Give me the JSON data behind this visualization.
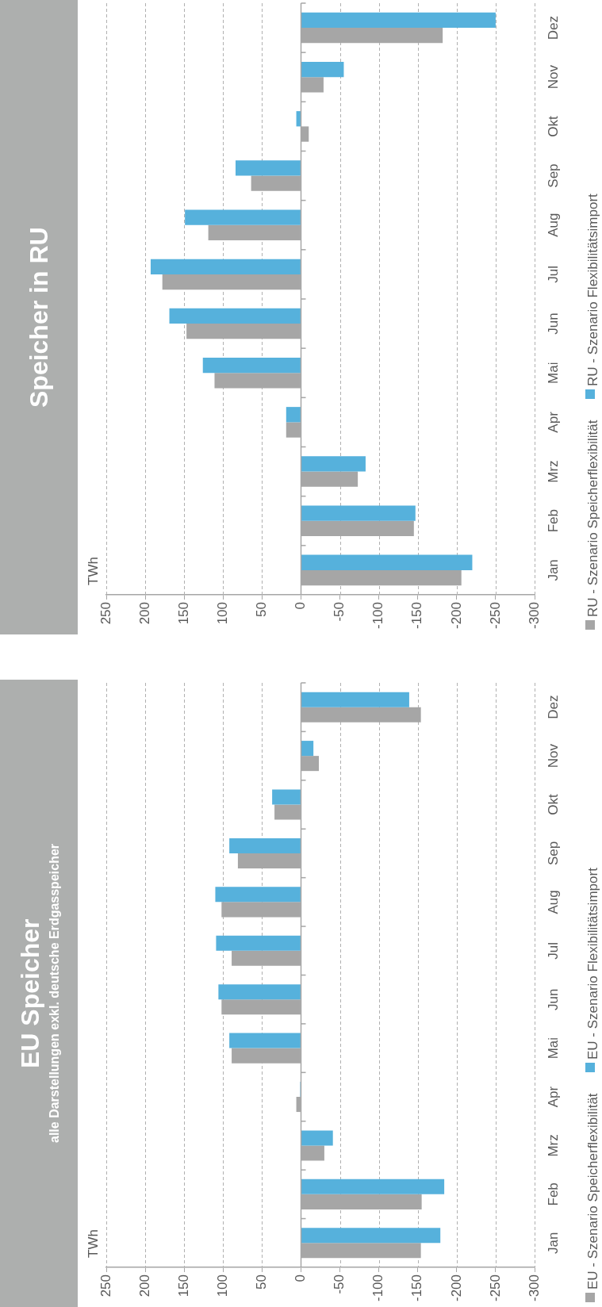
{
  "chart_data": [
    {
      "type": "bar",
      "orientation": "horizontal",
      "title": "EU Speicher",
      "subtitle": "alle Darstellungen exkl. deutsche Erdgasspeicher",
      "annotations": [
        "TWh"
      ],
      "categories": [
        "Dez",
        "Nov",
        "Okt",
        "Sep",
        "Aug",
        "Jul",
        "Jun",
        "Mai",
        "Apr",
        "Mrz",
        "Feb",
        "Jan"
      ],
      "series": [
        {
          "name": "EU - Szenario Speicherflexibilität",
          "color": "#a6a6a6",
          "values": [
            -154,
            -23,
            34,
            81,
            102,
            89,
            102,
            89,
            6,
            -30,
            -155,
            -154
          ]
        },
        {
          "name": "EU - Szenario Flexibilitätsimport",
          "color": "#56b1dc",
          "values": [
            -139,
            -16,
            37,
            92,
            110,
            109,
            106,
            92,
            1,
            -41,
            -184,
            -179
          ]
        }
      ],
      "xlim": [
        250,
        -300
      ],
      "xticks": [
        250,
        200,
        150,
        100,
        50,
        0,
        -50,
        -100,
        -150,
        -200,
        -250,
        -300
      ],
      "grid": "x",
      "legend": "right"
    },
    {
      "type": "bar",
      "orientation": "horizontal",
      "title": "Speicher in RU",
      "annotations": [
        "TWh"
      ],
      "categories": [
        "Dez",
        "Nov",
        "Okt",
        "Sep",
        "Aug",
        "Jul",
        "Jun",
        "Mai",
        "Apr",
        "Mrz",
        "Feb",
        "Jan"
      ],
      "series": [
        {
          "name": "RU - Szenario Speicherflexibilität",
          "color": "#a6a6a6",
          "values": [
            -182,
            -29,
            -10,
            64,
            119,
            178,
            147,
            111,
            19,
            -73,
            -145,
            -206
          ]
        },
        {
          "name": "RU - Szenario Flexibilitätsimport",
          "color": "#56b1dc",
          "values": [
            -250,
            -55,
            6,
            84,
            149,
            193,
            169,
            126,
            19,
            -83,
            -147,
            -220
          ]
        }
      ],
      "xlim": [
        250,
        -300
      ],
      "xticks": [
        250,
        200,
        150,
        100,
        50,
        0,
        -50,
        -100,
        -150,
        -200,
        -250,
        -300
      ],
      "grid": "x",
      "legend": "right"
    }
  ]
}
